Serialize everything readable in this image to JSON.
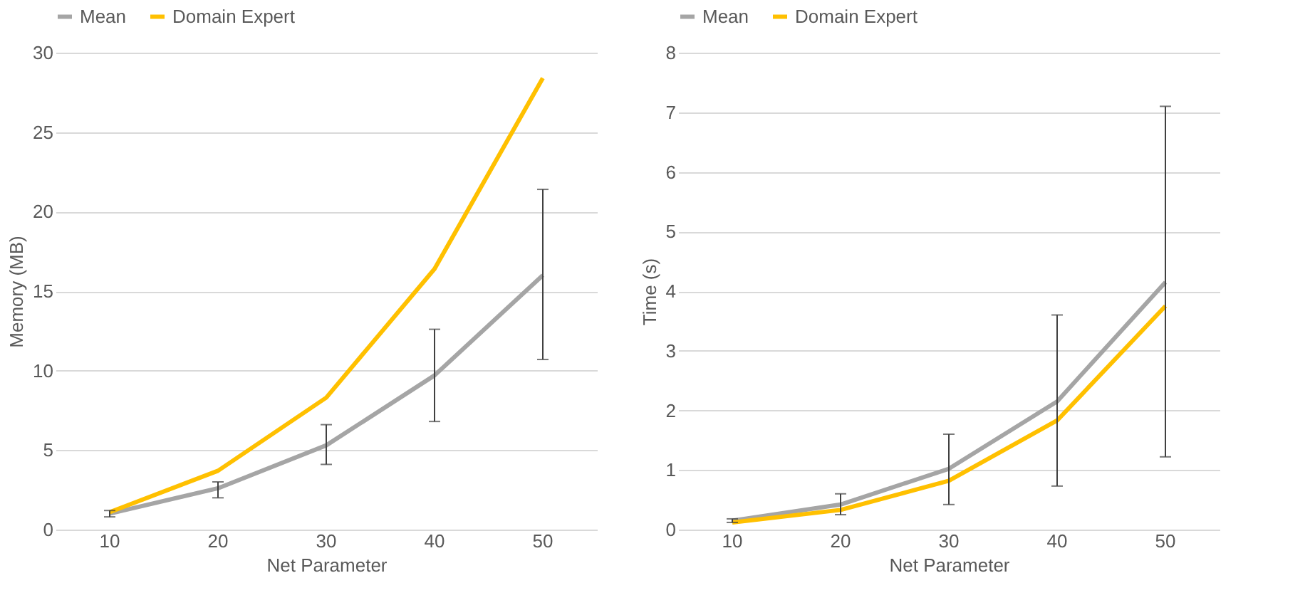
{
  "chart_data": [
    {
      "type": "line",
      "xlabel": "Net Parameter",
      "ylabel": "Memory (MB)",
      "categories": [
        "10",
        "20",
        "30",
        "40",
        "50"
      ],
      "ylim": [
        0,
        30
      ],
      "yticks": [
        0,
        5,
        10,
        15,
        20,
        25,
        30
      ],
      "grid": "y",
      "legend": "top",
      "marker": "none",
      "line_style": "solid",
      "series": [
        {
          "name": "Mean",
          "color": "#a5a5a5",
          "values": [
            1.0,
            2.6,
            5.3,
            9.7,
            16.0
          ],
          "errors": [
            [
              0.8,
              1.2
            ],
            [
              2.0,
              3.0
            ],
            [
              4.1,
              6.6
            ],
            [
              6.8,
              12.6
            ],
            [
              10.7,
              21.4
            ]
          ]
        },
        {
          "name": "Domain Expert",
          "color": "#ffc000",
          "values": [
            1.1,
            3.7,
            8.3,
            16.4,
            28.4
          ]
        }
      ]
    },
    {
      "type": "line",
      "xlabel": "Net Parameter",
      "ylabel": "Time (s)",
      "categories": [
        "10",
        "20",
        "30",
        "40",
        "50"
      ],
      "ylim": [
        0,
        8
      ],
      "yticks": [
        0,
        1,
        2,
        3,
        4,
        5,
        6,
        7,
        8
      ],
      "grid": "y",
      "legend": "top",
      "marker": "none",
      "line_style": "solid",
      "series": [
        {
          "name": "Mean",
          "color": "#a5a5a5",
          "values": [
            0.15,
            0.42,
            1.02,
            2.15,
            4.15
          ],
          "errors": [
            [
              0.12,
              0.18
            ],
            [
              0.25,
              0.6
            ],
            [
              0.42,
              1.6
            ],
            [
              0.73,
              3.6
            ],
            [
              1.22,
              7.1
            ]
          ]
        },
        {
          "name": "Domain Expert",
          "color": "#ffc000",
          "values": [
            0.12,
            0.33,
            0.82,
            1.83,
            3.75
          ]
        }
      ]
    }
  ]
}
